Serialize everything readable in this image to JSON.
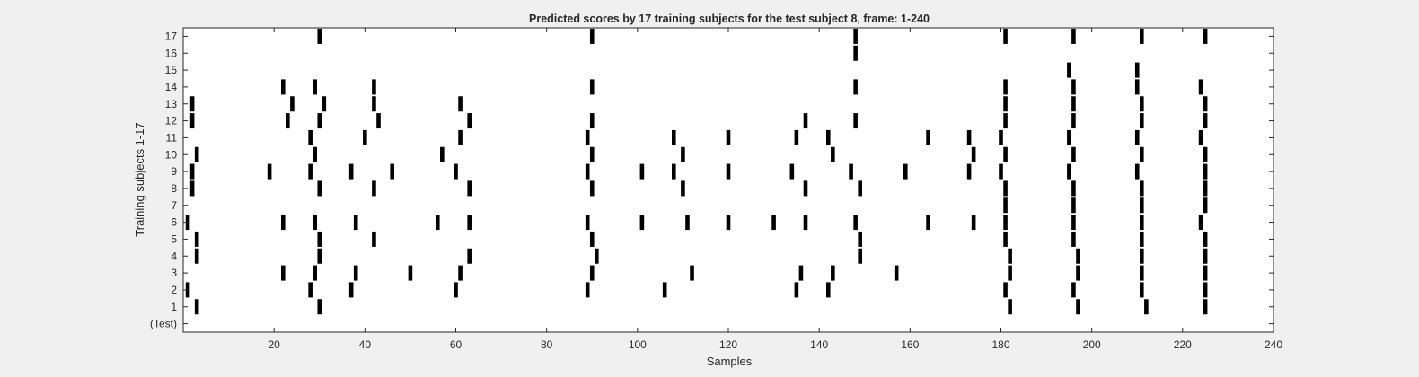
{
  "chart_data": {
    "type": "scatter",
    "title": "Predicted scores by 17 training subjects for the test subject 8, frame: 1-240",
    "xlabel": "Samples",
    "ylabel": "Training subjects 1-17",
    "xlim": [
      0,
      240
    ],
    "xticks": [
      20,
      40,
      60,
      80,
      100,
      120,
      140,
      160,
      180,
      200,
      220,
      240
    ],
    "yticklabels": [
      "(Test)",
      "1",
      "2",
      "3",
      "4",
      "5",
      "6",
      "7",
      "8",
      "9",
      "10",
      "11",
      "12",
      "13",
      "14",
      "15",
      "16",
      "17"
    ],
    "grid": false,
    "marker": "vertical-bar",
    "marker_color": "#000000",
    "background": "#ffffff",
    "series": [
      {
        "row": 1,
        "x": [
          3,
          30,
          182,
          197,
          212,
          225
        ]
      },
      {
        "row": 2,
        "x": [
          1,
          28,
          37,
          60,
          89,
          106,
          135,
          142,
          181,
          196,
          211,
          225
        ]
      },
      {
        "row": 3,
        "x": [
          22,
          29,
          38,
          50,
          61,
          90,
          112,
          136,
          143,
          157,
          182,
          197,
          211,
          225
        ]
      },
      {
        "row": 4,
        "x": [
          3,
          30,
          63,
          91,
          149,
          182,
          197,
          211,
          225
        ]
      },
      {
        "row": 5,
        "x": [
          3,
          30,
          42,
          90,
          149,
          181,
          196,
          211,
          225
        ]
      },
      {
        "row": 6,
        "x": [
          1,
          22,
          29,
          38,
          56,
          63,
          89,
          101,
          111,
          120,
          130,
          137,
          148,
          164,
          174,
          181,
          196,
          211,
          224
        ]
      },
      {
        "row": 7,
        "x": [
          181,
          196,
          211,
          225
        ]
      },
      {
        "row": 8,
        "x": [
          2,
          30,
          42,
          63,
          90,
          110,
          137,
          149,
          181,
          196,
          211,
          225
        ]
      },
      {
        "row": 9,
        "x": [
          2,
          19,
          28,
          37,
          46,
          60,
          89,
          101,
          108,
          120,
          134,
          147,
          159,
          173,
          180,
          195,
          210,
          225
        ]
      },
      {
        "row": 10,
        "x": [
          3,
          29,
          57,
          90,
          110,
          143,
          174,
          181,
          196,
          211,
          225
        ]
      },
      {
        "row": 11,
        "x": [
          28,
          40,
          61,
          89,
          108,
          120,
          135,
          142,
          164,
          173,
          180,
          195,
          210,
          224
        ]
      },
      {
        "row": 12,
        "x": [
          2,
          23,
          30,
          43,
          63,
          90,
          137,
          148,
          181,
          196,
          211,
          225
        ]
      },
      {
        "row": 13,
        "x": [
          2,
          24,
          31,
          42,
          61,
          181,
          196,
          211,
          225
        ]
      },
      {
        "row": 14,
        "x": [
          22,
          29,
          42,
          90,
          148,
          181,
          196,
          210,
          224
        ]
      },
      {
        "row": 15,
        "x": [
          195,
          210
        ]
      },
      {
        "row": 16,
        "x": [
          148
        ]
      },
      {
        "row": 17,
        "x": [
          30,
          90,
          148,
          181,
          196,
          211,
          225
        ]
      }
    ]
  }
}
